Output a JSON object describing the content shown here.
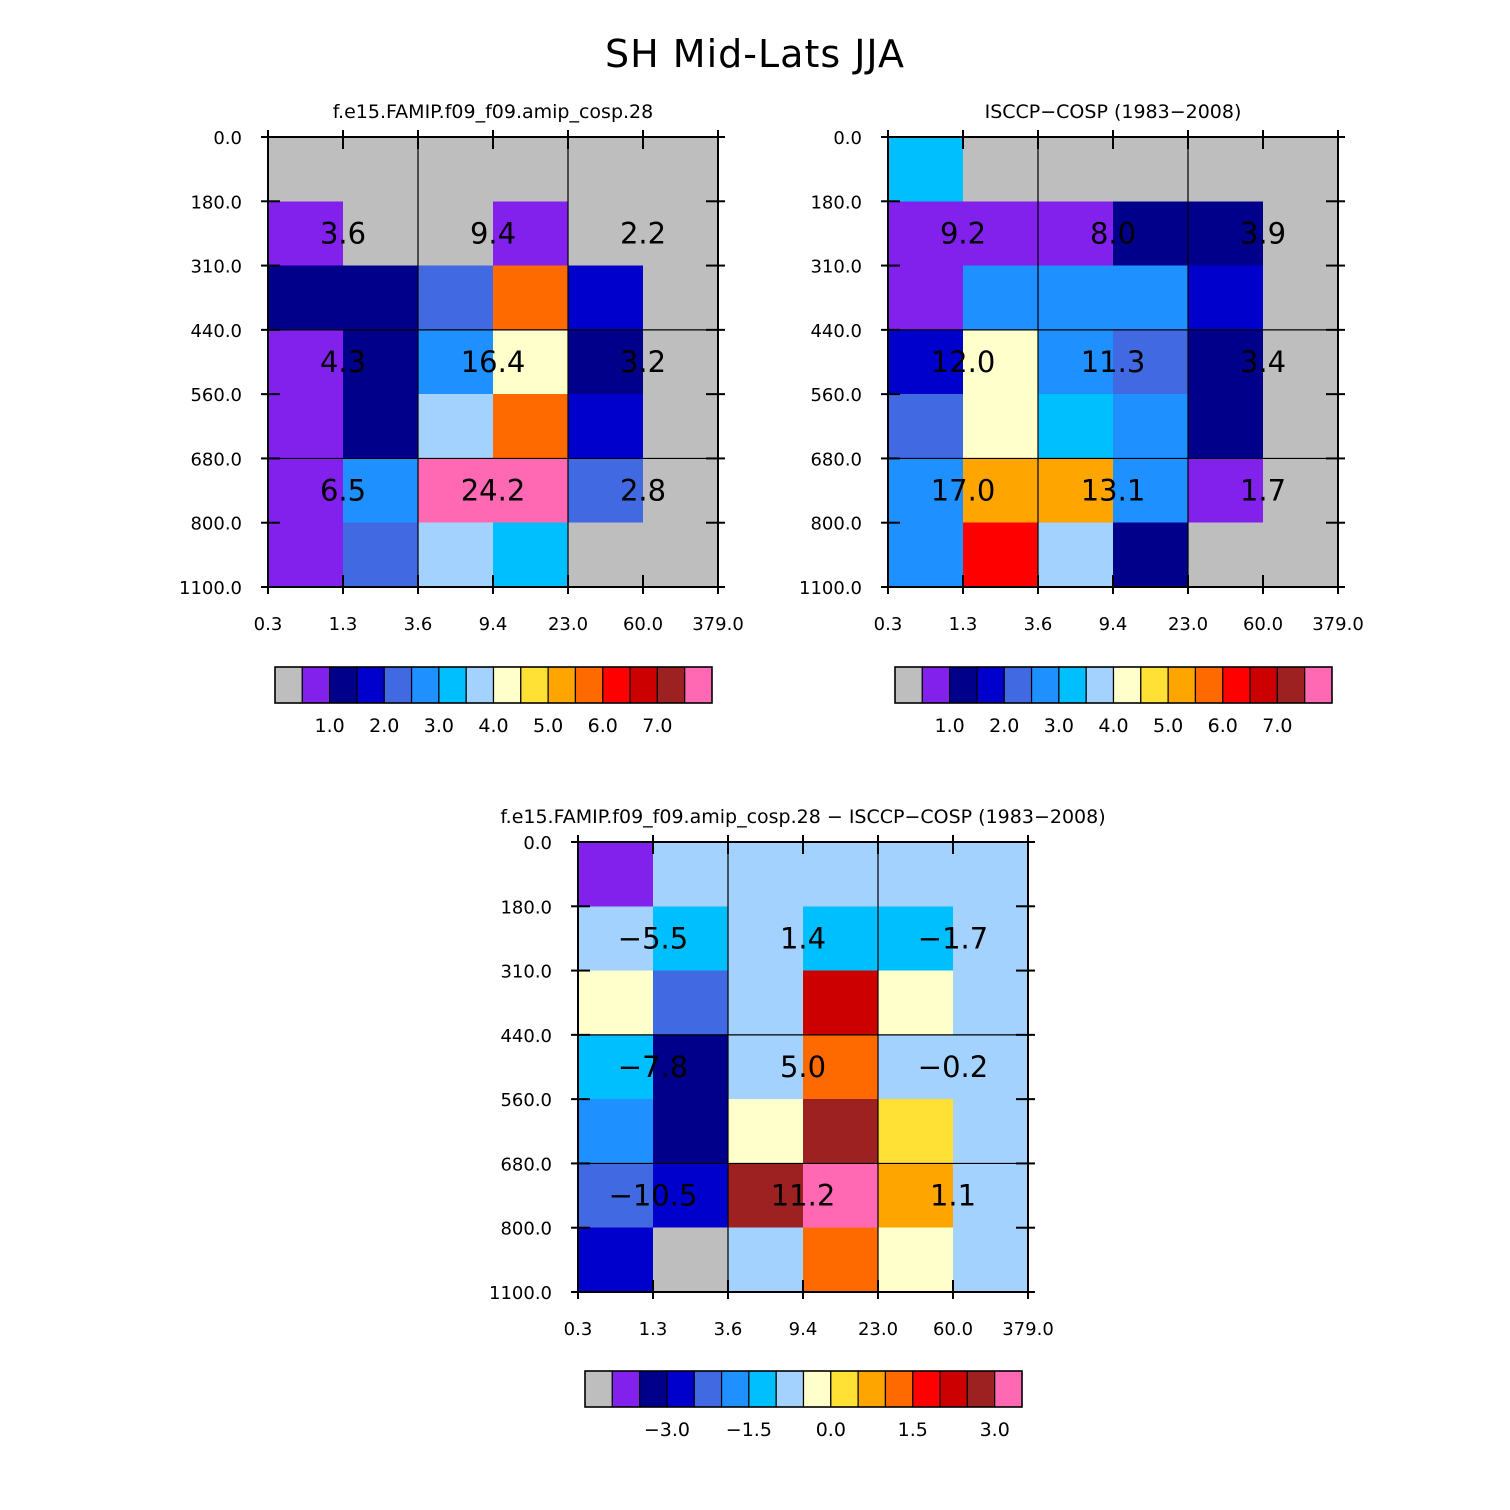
{
  "figure": {
    "title": "SH Mid-Lats JJA"
  },
  "colormaps": {
    "abs": [
      "#bebebe",
      "#8221ec",
      "#00008b",
      "#0000cd",
      "#4169e1",
      "#1e90ff",
      "#00bfff",
      "#a3d2ff",
      "#ffffcc",
      "#ffe135",
      "#ffa500",
      "#ff6a00",
      "#ff0000",
      "#cd0000",
      "#9e2121",
      "#ff69b4"
    ],
    "diff": [
      "#bebebe",
      "#8221ec",
      "#00008b",
      "#0000cd",
      "#4169e1",
      "#1e90ff",
      "#00bfff",
      "#a3d2ff",
      "#ffffcc",
      "#ffe135",
      "#ffa500",
      "#ff6a00",
      "#ff0000",
      "#cd0000",
      "#9e2121",
      "#ff69b4"
    ]
  },
  "chart_data": [
    {
      "type": "heatmap",
      "title": "f.e15.FAMIP.f09_f09.amip_cosp.28",
      "x_ticks": [
        "0.3",
        "1.3",
        "3.6",
        "9.4",
        "23.0",
        "60.0",
        "379.0"
      ],
      "y_ticks": [
        "0.0",
        "180.0",
        "310.0",
        "440.0",
        "560.0",
        "680.0",
        "800.0",
        "1100.0"
      ],
      "color_index_grid": [
        [
          0,
          0,
          0,
          0,
          0,
          0
        ],
        [
          1,
          0,
          0,
          1,
          0,
          0
        ],
        [
          2,
          2,
          4,
          11,
          3,
          0
        ],
        [
          1,
          2,
          5,
          8,
          2,
          0
        ],
        [
          1,
          2,
          7,
          11,
          3,
          0
        ],
        [
          1,
          5,
          15,
          15,
          4,
          0
        ],
        [
          1,
          4,
          7,
          6,
          0,
          0
        ]
      ],
      "summary_values": [
        [
          "3.6",
          "9.4",
          "2.2"
        ],
        [
          "4.3",
          "16.4",
          "3.2"
        ],
        [
          "6.5",
          "24.2",
          "2.8"
        ]
      ],
      "colorbar": {
        "labels": [
          "1.0",
          "2.0",
          "3.0",
          "4.0",
          "5.0",
          "6.0",
          "7.0"
        ]
      }
    },
    {
      "type": "heatmap",
      "title": "ISCCP-COSP (1983-2008)",
      "x_ticks": [
        "0.3",
        "1.3",
        "3.6",
        "9.4",
        "23.0",
        "60.0",
        "379.0"
      ],
      "y_ticks": [
        "0.0",
        "180.0",
        "310.0",
        "440.0",
        "560.0",
        "680.0",
        "800.0",
        "1100.0"
      ],
      "color_index_grid": [
        [
          6,
          0,
          0,
          0,
          0,
          0
        ],
        [
          1,
          1,
          1,
          2,
          2,
          0
        ],
        [
          1,
          5,
          5,
          5,
          3,
          0
        ],
        [
          3,
          8,
          5,
          4,
          2,
          0
        ],
        [
          4,
          8,
          6,
          5,
          2,
          0
        ],
        [
          5,
          10,
          10,
          5,
          1,
          0
        ],
        [
          5,
          12,
          7,
          2,
          0,
          0
        ]
      ],
      "summary_values": [
        [
          "9.2",
          "8.0",
          "3.9"
        ],
        [
          "12.0",
          "11.3",
          "3.4"
        ],
        [
          "17.0",
          "13.1",
          "1.7"
        ]
      ],
      "colorbar": {
        "labels": [
          "1.0",
          "2.0",
          "3.0",
          "4.0",
          "5.0",
          "6.0",
          "7.0"
        ]
      }
    },
    {
      "type": "heatmap",
      "title": "f.e15.FAMIP.f09_f09.amip_cosp.28 - ISCCP-COSP (1983-2008)",
      "x_ticks": [
        "0.3",
        "1.3",
        "3.6",
        "9.4",
        "23.0",
        "60.0",
        "379.0"
      ],
      "y_ticks": [
        "0.0",
        "180.0",
        "310.0",
        "440.0",
        "560.0",
        "680.0",
        "800.0",
        "1100.0"
      ],
      "color_index_grid": [
        [
          1,
          7,
          7,
          7,
          7,
          7
        ],
        [
          7,
          6,
          7,
          6,
          6,
          7
        ],
        [
          8,
          4,
          7,
          13,
          8,
          7
        ],
        [
          6,
          2,
          7,
          11,
          7,
          7
        ],
        [
          5,
          2,
          8,
          14,
          9,
          7
        ],
        [
          4,
          3,
          14,
          15,
          10,
          7
        ],
        [
          3,
          0,
          7,
          11,
          8,
          7
        ]
      ],
      "summary_values": [
        [
          "-5.5",
          "1.4",
          "-1.7"
        ],
        [
          "-7.8",
          "5.0",
          "-0.2"
        ],
        [
          "-10.5",
          "11.2",
          "1.1"
        ]
      ],
      "colorbar": {
        "labels": [
          "-3.0",
          "-1.5",
          "0.0",
          "1.5",
          "3.0"
        ]
      }
    }
  ]
}
